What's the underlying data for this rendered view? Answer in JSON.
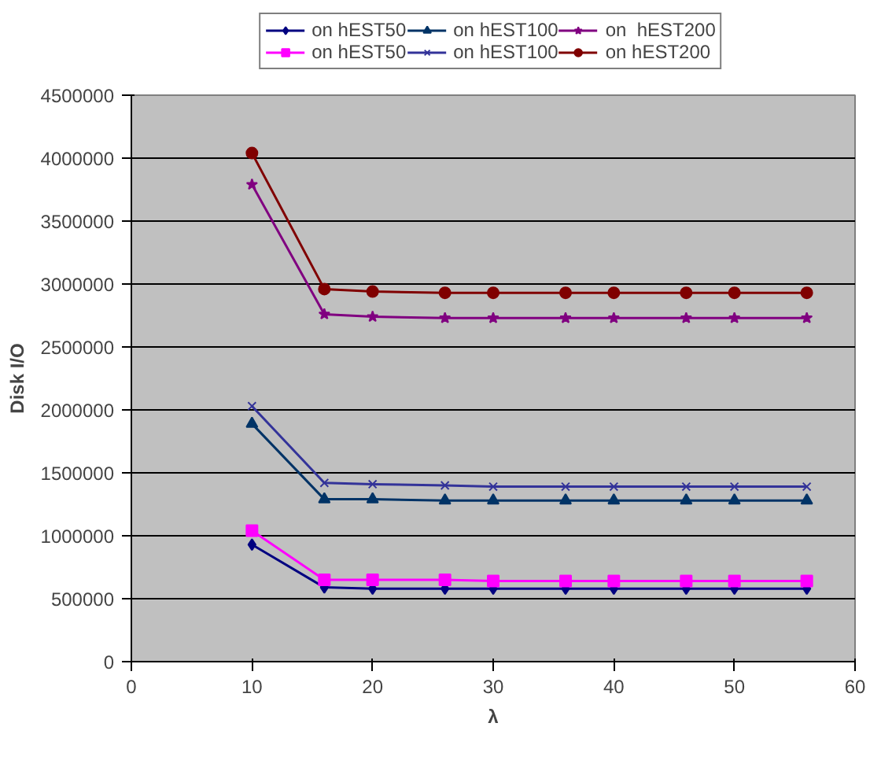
{
  "chart_data": {
    "type": "line",
    "xlabel": "λ",
    "ylabel": "Disk I/O",
    "x": [
      10,
      16,
      20,
      26,
      30,
      36,
      40,
      46,
      50,
      56
    ],
    "xlim": [
      0,
      60
    ],
    "xticks": [
      0,
      10,
      20,
      30,
      40,
      50,
      60
    ],
    "ylim": [
      0,
      4500000
    ],
    "yticks": [
      0,
      500000,
      1000000,
      1500000,
      2000000,
      2500000,
      3000000,
      3500000,
      4000000,
      4500000
    ],
    "grid": "y",
    "legend": "top",
    "series": [
      {
        "name": "on hEST50",
        "color": "#000080",
        "marker": "diamond",
        "values": [
          930000,
          590000,
          580000,
          580000,
          580000,
          580000,
          580000,
          580000,
          580000,
          580000
        ]
      },
      {
        "name": "on hEST50",
        "color": "#ff00ff",
        "marker": "square",
        "values": [
          1040000,
          650000,
          650000,
          650000,
          640000,
          640000,
          640000,
          640000,
          640000,
          640000
        ]
      },
      {
        "name": "on hEST100",
        "color": "#003366",
        "marker": "triangle",
        "values": [
          1890000,
          1290000,
          1290000,
          1280000,
          1280000,
          1280000,
          1280000,
          1280000,
          1280000,
          1280000
        ]
      },
      {
        "name": "on hEST100",
        "color": "#333399",
        "marker": "x",
        "values": [
          2030000,
          1420000,
          1410000,
          1400000,
          1390000,
          1390000,
          1390000,
          1390000,
          1390000,
          1390000
        ]
      },
      {
        "name": "on  hEST200",
        "color": "#800080",
        "marker": "star",
        "values": [
          3790000,
          2760000,
          2740000,
          2730000,
          2730000,
          2730000,
          2730000,
          2730000,
          2730000,
          2730000
        ]
      },
      {
        "name": "on hEST200",
        "color": "#800000",
        "marker": "circle",
        "values": [
          4040000,
          2960000,
          2940000,
          2930000,
          2930000,
          2930000,
          2930000,
          2930000,
          2930000,
          2930000
        ]
      }
    ]
  }
}
